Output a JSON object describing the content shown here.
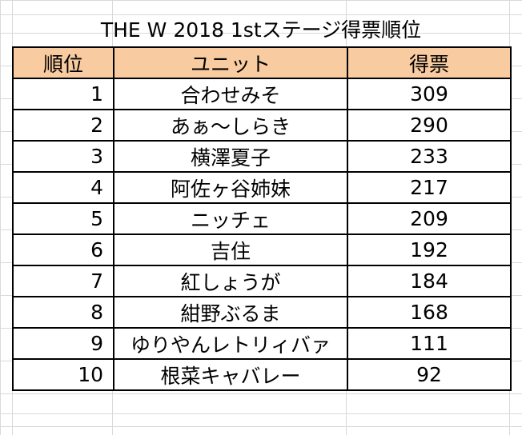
{
  "title": "THE W 2018 1stステージ得票順位",
  "headers": {
    "rank": "順位",
    "unit": "ユニット",
    "votes": "得票"
  },
  "rows": [
    {
      "rank": "1",
      "unit": "合わせみそ",
      "votes": "309"
    },
    {
      "rank": "2",
      "unit": "あぁ〜しらき",
      "votes": "290"
    },
    {
      "rank": "3",
      "unit": "横澤夏子",
      "votes": "233"
    },
    {
      "rank": "4",
      "unit": "阿佐ヶ谷姉妹",
      "votes": "217"
    },
    {
      "rank": "5",
      "unit": "ニッチェ",
      "votes": "209"
    },
    {
      "rank": "6",
      "unit": "吉住",
      "votes": "192"
    },
    {
      "rank": "7",
      "unit": "紅しょうが",
      "votes": "184"
    },
    {
      "rank": "8",
      "unit": "紺野ぶるま",
      "votes": "168"
    },
    {
      "rank": "9",
      "unit": "ゆりやんレトリィバァ",
      "votes": "111"
    },
    {
      "rank": "10",
      "unit": "根菜キャバレー",
      "votes": "92"
    }
  ],
  "colors": {
    "header_bg": "#f8cba0",
    "gridline": "#d9d9d9",
    "border": "#000000"
  }
}
